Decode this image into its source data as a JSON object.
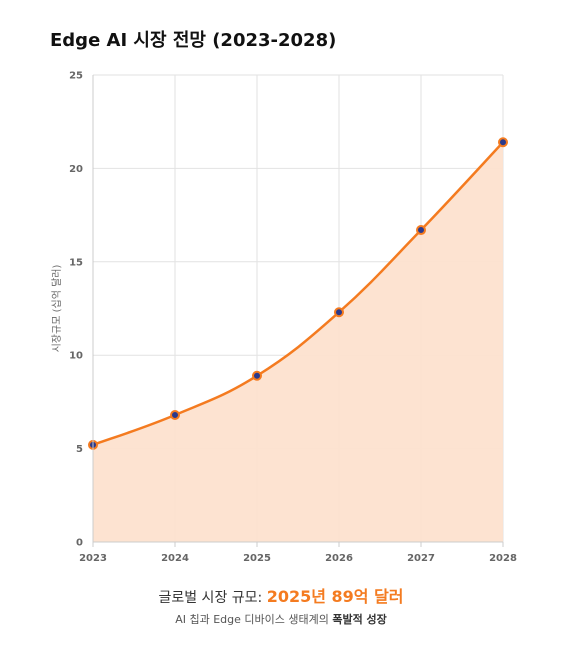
{
  "title": "Edge AI 시장 전망 (2023-2028)",
  "colors": {
    "line": "#f47b20",
    "area": "#fde2cf",
    "point_fill": "#2b3a8c",
    "highlight": "#f47b20"
  },
  "chart_data": {
    "type": "area",
    "title": "Edge AI 시장 전망 (2023-2028)",
    "xlabel": "",
    "ylabel": "시장규모 (십억 달러)",
    "x": [
      "2023",
      "2024",
      "2025",
      "2026",
      "2027",
      "2028"
    ],
    "series": [
      {
        "values": [
          5.2,
          6.8,
          8.9,
          12.3,
          16.7,
          21.4
        ]
      }
    ],
    "ylim": [
      0,
      25
    ],
    "yticks": [
      0,
      5,
      10,
      15,
      20,
      25
    ],
    "grid": true,
    "legend": "none",
    "smooth": true
  },
  "footer": {
    "main_prefix": "글로벌 시장 규모: ",
    "main_highlight": "2025년 89억 달러",
    "sub_prefix": "AI 칩과 Edge 디바이스 생태계의 ",
    "sub_bold": "폭발적 성장"
  }
}
